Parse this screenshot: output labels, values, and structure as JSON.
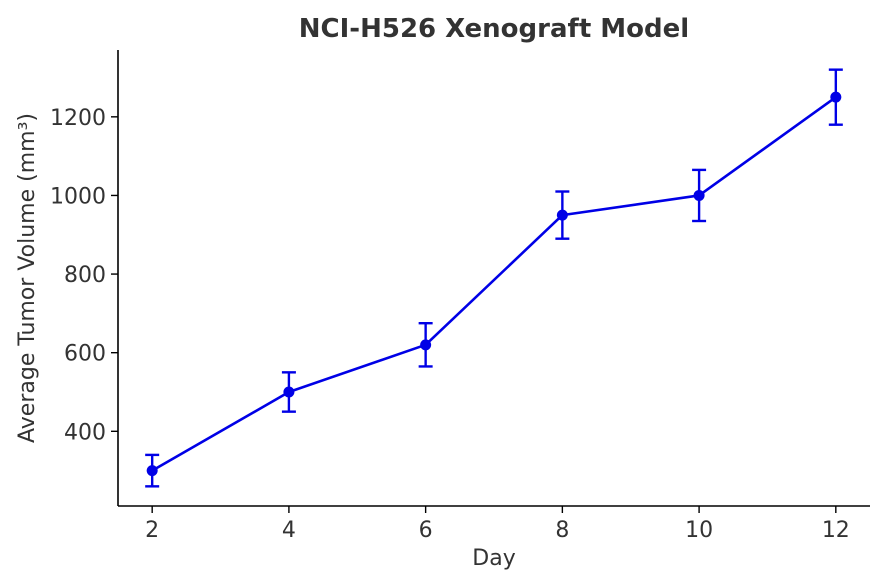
{
  "chart_data": {
    "type": "line",
    "title": "NCI-H526 Xenograft Model",
    "xlabel": "Day",
    "ylabel": "Average Tumor Volume (mm³)",
    "x": [
      2,
      4,
      6,
      8,
      10,
      12
    ],
    "series": [
      {
        "values": [
          300,
          500,
          620,
          950,
          1000,
          1250
        ],
        "error": [
          40,
          50,
          55,
          60,
          65,
          70
        ],
        "color": "#0000e6"
      }
    ],
    "xticks": [
      2,
      4,
      6,
      8,
      10,
      12
    ],
    "yticks": [
      400,
      600,
      800,
      1000,
      1200
    ],
    "xlim": [
      1.5,
      12.5
    ],
    "ylim": [
      210,
      1370
    ],
    "grid": false,
    "colors": {
      "text": "#333333",
      "axis": "#000000"
    }
  }
}
